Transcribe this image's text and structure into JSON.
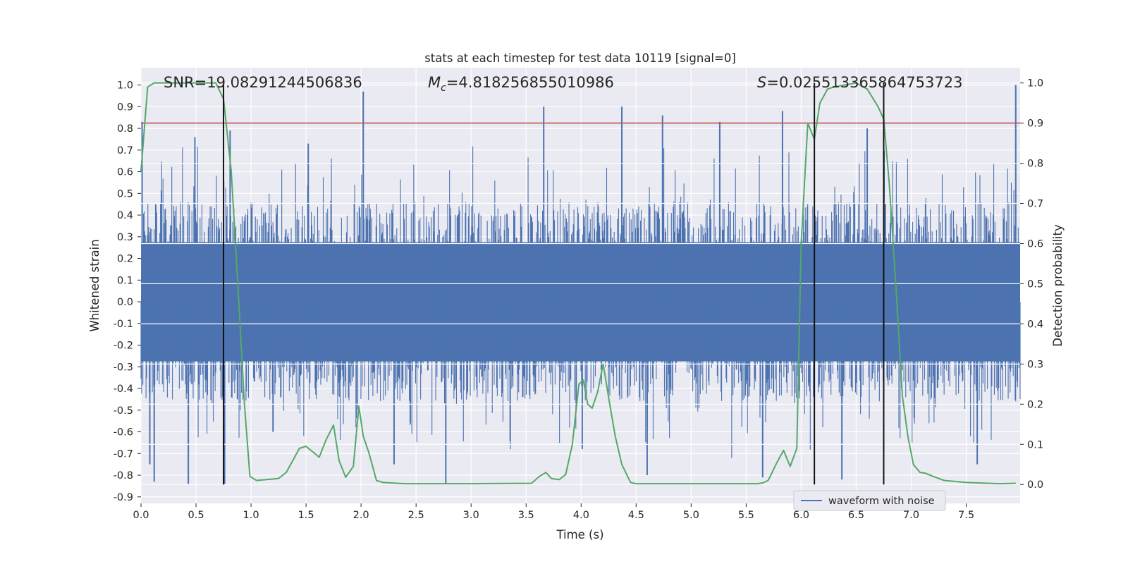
{
  "chart_data": {
    "type": "line",
    "title": "stats at each timestep for test data 10119 [signal=0]",
    "xlabel": "Time (s)",
    "ylabel": "Whitened strain",
    "y2label": "Detection probability",
    "xlim": [
      0.0,
      7.99
    ],
    "ylim": [
      -0.93,
      1.08
    ],
    "y2lim": [
      -0.047,
      1.038
    ],
    "x_ticks": [
      "0.0",
      "0.5",
      "1.0",
      "1.5",
      "2.0",
      "2.5",
      "3.0",
      "3.5",
      "4.0",
      "4.5",
      "5.0",
      "5.5",
      "6.0",
      "6.5",
      "7.0",
      "7.5"
    ],
    "y_ticks": [
      "1.0",
      "0.9",
      "0.8",
      "0.7",
      "0.6",
      "0.5",
      "0.4",
      "0.3",
      "0.2",
      "0.1",
      "0.0",
      "-0.1",
      "-0.2",
      "-0.3",
      "-0.4",
      "-0.5",
      "-0.6",
      "-0.7",
      "-0.8",
      "-0.9"
    ],
    "y2_ticks": [
      "1.0",
      "0.9",
      "0.8",
      "0.7",
      "0.6",
      "0.5",
      "0.4",
      "0.3",
      "0.2",
      "0.1",
      "0.0"
    ],
    "grid": true,
    "legend_position": "bottom-right",
    "annotations": {
      "snr": "SNR=19.08291244506836",
      "mc_symbol": "M",
      "mc_sub": "c",
      "mc_value": "=4.818256855010986",
      "s_symbol": "S",
      "s_value": "=0.025513365864753723"
    },
    "threshold_line": {
      "y2": 0.9,
      "color": "#c44e52"
    },
    "vertical_lines_x": [
      0.75,
      6.12,
      6.75
    ],
    "series": [
      {
        "name": "waveform with noise",
        "axis": "left",
        "color": "#4c72b0",
        "representative_peaks": [
          {
            "x": 0.01,
            "y": 0.83
          },
          {
            "x": 0.08,
            "y": -0.75
          },
          {
            "x": 0.12,
            "y": -0.83
          },
          {
            "x": 0.43,
            "y": -0.84
          },
          {
            "x": 0.49,
            "y": 0.76
          },
          {
            "x": 0.76,
            "y": -0.84
          },
          {
            "x": 0.81,
            "y": 0.79
          },
          {
            "x": 1.2,
            "y": -0.6
          },
          {
            "x": 1.52,
            "y": 0.73
          },
          {
            "x": 2.02,
            "y": 0.97
          },
          {
            "x": 2.3,
            "y": -0.75
          },
          {
            "x": 2.77,
            "y": -0.84
          },
          {
            "x": 3.66,
            "y": 0.9
          },
          {
            "x": 4.01,
            "y": -0.68
          },
          {
            "x": 4.37,
            "y": 0.9
          },
          {
            "x": 4.6,
            "y": -0.8
          },
          {
            "x": 4.74,
            "y": 0.86
          },
          {
            "x": 5.26,
            "y": 0.83
          },
          {
            "x": 5.65,
            "y": -0.81
          },
          {
            "x": 5.83,
            "y": 0.88
          },
          {
            "x": 6.37,
            "y": -0.82
          },
          {
            "x": 6.6,
            "y": 0.8
          },
          {
            "x": 7.6,
            "y": -0.75
          },
          {
            "x": 7.95,
            "y": 1.0
          }
        ],
        "dense_band": [
          -0.5,
          0.5
        ]
      },
      {
        "name": "detection probability",
        "axis": "right",
        "color": "#55a868",
        "x": [
          0.0,
          0.06,
          0.12,
          0.3,
          0.5,
          0.68,
          0.75,
          0.82,
          0.88,
          0.94,
          0.99,
          1.05,
          1.25,
          1.32,
          1.38,
          1.44,
          1.5,
          1.62,
          1.68,
          1.75,
          1.8,
          1.86,
          1.93,
          1.98,
          2.02,
          2.07,
          2.14,
          2.2,
          2.4,
          2.7,
          3.0,
          3.55,
          3.62,
          3.68,
          3.73,
          3.8,
          3.86,
          3.92,
          3.98,
          4.02,
          4.06,
          4.1,
          4.15,
          4.2,
          4.26,
          4.31,
          4.37,
          4.45,
          4.5,
          4.6,
          5.0,
          5.6,
          5.65,
          5.7,
          5.78,
          5.84,
          5.9,
          5.96,
          6.0,
          6.06,
          6.12,
          6.17,
          6.24,
          6.3,
          6.5,
          6.6,
          6.7,
          6.75,
          6.8,
          6.86,
          6.92,
          6.97,
          7.02,
          7.08,
          7.13,
          7.2,
          7.3,
          7.5,
          7.8,
          7.95
        ],
        "y": [
          0.78,
          0.99,
          1.0,
          1.0,
          1.0,
          1.0,
          0.96,
          0.78,
          0.5,
          0.2,
          0.02,
          0.01,
          0.015,
          0.03,
          0.06,
          0.09,
          0.095,
          0.068,
          0.11,
          0.148,
          0.06,
          0.018,
          0.045,
          0.195,
          0.12,
          0.08,
          0.01,
          0.005,
          0.002,
          0.002,
          0.002,
          0.003,
          0.02,
          0.03,
          0.015,
          0.012,
          0.025,
          0.1,
          0.25,
          0.26,
          0.2,
          0.19,
          0.23,
          0.3,
          0.2,
          0.12,
          0.05,
          0.005,
          0.002,
          0.002,
          0.002,
          0.002,
          0.004,
          0.01,
          0.055,
          0.085,
          0.045,
          0.09,
          0.6,
          0.9,
          0.86,
          0.95,
          0.985,
          0.99,
          1.0,
          0.985,
          0.94,
          0.91,
          0.75,
          0.5,
          0.22,
          0.12,
          0.05,
          0.03,
          0.028,
          0.02,
          0.01,
          0.005,
          0.002,
          0.003
        ]
      }
    ]
  }
}
